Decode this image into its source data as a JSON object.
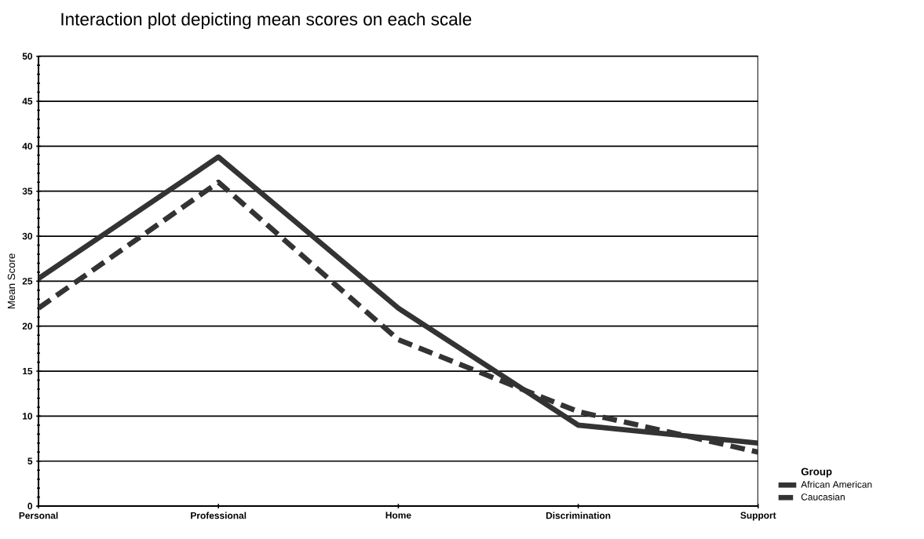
{
  "chart_data": {
    "type": "line",
    "title": "Interaction plot depicting mean scores on each scale",
    "ylabel": "Mean Score",
    "legend_title": "Group",
    "categories": [
      "Personal",
      "Professional",
      "Home",
      "Discrimination",
      "Support"
    ],
    "series": [
      {
        "name": "African American",
        "color": "#333333",
        "line_style": "solid",
        "values": [
          25.3,
          38.8,
          22,
          9,
          7
        ]
      },
      {
        "name": "Caucasian",
        "color": "#333333",
        "line_style": "dashed",
        "values": [
          22,
          36,
          18.5,
          10.5,
          6
        ]
      }
    ],
    "ylim": [
      0,
      50
    ],
    "yticks": [
      0,
      5,
      10,
      15,
      20,
      25,
      30,
      35,
      40,
      45,
      50
    ],
    "grid": "y",
    "legend": "right",
    "marker": "none"
  }
}
